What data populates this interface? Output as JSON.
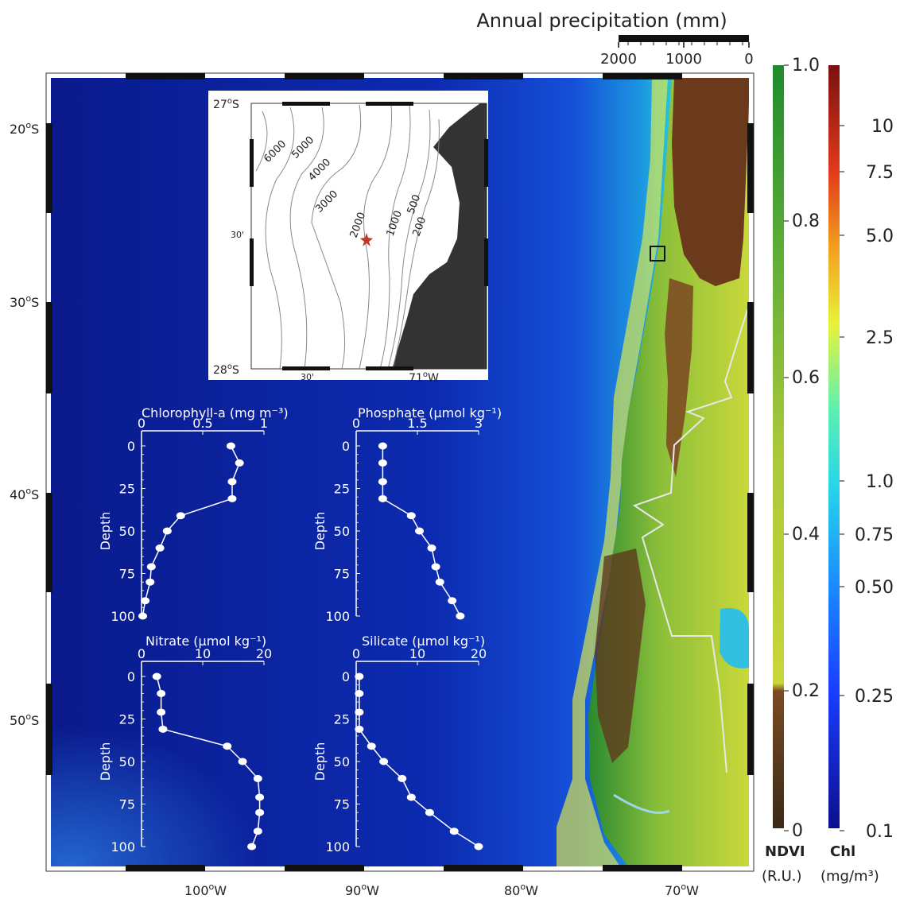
{
  "precip": {
    "title": "Annual precipitation (mm)",
    "ticks": [
      "2000",
      "1000",
      "0"
    ]
  },
  "lat_labels": [
    {
      "deg": "20",
      "suffix": "S"
    },
    {
      "deg": "30",
      "suffix": "S"
    },
    {
      "deg": "40",
      "suffix": "S"
    },
    {
      "deg": "50",
      "suffix": "S"
    }
  ],
  "lon_labels": [
    {
      "deg": "100",
      "suffix": "W"
    },
    {
      "deg": "90",
      "suffix": "W"
    },
    {
      "deg": "80",
      "suffix": "W"
    },
    {
      "deg": "70",
      "suffix": "W"
    }
  ],
  "inset": {
    "lat_top": {
      "deg": "27",
      "suffix": "S"
    },
    "lat_bottom": {
      "deg": "28",
      "suffix": "S"
    },
    "lat_mid": "30'",
    "lon_mid": "30'",
    "lon_right": {
      "deg": "71",
      "suffix": "W"
    },
    "contours": [
      "6000",
      "5000",
      "4000",
      "3000",
      "2000",
      "1000",
      "500",
      "200"
    ]
  },
  "ndvi": {
    "ticks": [
      "1.0",
      "0.8",
      "0.6",
      "0.4",
      "0.2",
      "0"
    ],
    "title": "NDVI",
    "unit": "(R.U.)"
  },
  "chl": {
    "ticks": [
      "10",
      "7.5",
      "5.0",
      "2.5",
      "1.0",
      "0.75",
      "0.50",
      "0.25",
      "0.1"
    ],
    "title": "Chl",
    "unit": "(mg/m³)"
  },
  "colors": {
    "ocean": "#0a1f9e",
    "land": "#a6c23a",
    "desert": "#6b3a1c",
    "ndvi_green": "#2f8f2f",
    "chl_red": "#8b1a10"
  },
  "profiles": {
    "chlorophyll": {
      "title": "Chlorophyll-a (mg m⁻³)",
      "ylabel": "Depth",
      "xticks": [
        "0",
        "0.5",
        "1"
      ],
      "yticks": [
        "0",
        "25",
        "50",
        "75",
        "100"
      ],
      "xlim": [
        0,
        1
      ],
      "ylim": [
        0,
        100
      ],
      "points": [
        [
          0.73,
          0
        ],
        [
          0.8,
          10
        ],
        [
          0.74,
          21
        ],
        [
          0.74,
          31
        ],
        [
          0.32,
          41
        ],
        [
          0.21,
          50
        ],
        [
          0.15,
          60
        ],
        [
          0.08,
          71
        ],
        [
          0.07,
          80
        ],
        [
          0.03,
          91
        ],
        [
          0.01,
          100
        ]
      ]
    },
    "phosphate": {
      "title": "Phosphate (µmol kg⁻¹)",
      "ylabel": "Depth",
      "xticks": [
        "0",
        "1.5",
        "3"
      ],
      "yticks": [
        "0",
        "25",
        "50",
        "75",
        "100"
      ],
      "xlim": [
        0,
        3
      ],
      "ylim": [
        0,
        100
      ],
      "points": [
        [
          0.65,
          0
        ],
        [
          0.65,
          10
        ],
        [
          0.65,
          21
        ],
        [
          0.65,
          31
        ],
        [
          1.35,
          41
        ],
        [
          1.55,
          50
        ],
        [
          1.85,
          60
        ],
        [
          1.95,
          71
        ],
        [
          2.05,
          80
        ],
        [
          2.35,
          91
        ],
        [
          2.55,
          100
        ]
      ]
    },
    "nitrate": {
      "title": "Nitrate (µmol kg⁻¹)",
      "ylabel": "Depth",
      "xticks": [
        "0",
        "10",
        "20"
      ],
      "yticks": [
        "0",
        "25",
        "50",
        "75",
        "100"
      ],
      "xlim": [
        0,
        20
      ],
      "ylim": [
        0,
        100
      ],
      "points": [
        [
          2.5,
          0
        ],
        [
          3.2,
          10
        ],
        [
          3.2,
          21
        ],
        [
          3.5,
          31
        ],
        [
          14,
          41
        ],
        [
          16.5,
          50
        ],
        [
          19,
          60
        ],
        [
          19.3,
          71
        ],
        [
          19.3,
          80
        ],
        [
          19,
          91
        ],
        [
          18,
          100
        ]
      ]
    },
    "silicate": {
      "title": "Silicate (µmol kg⁻¹)",
      "ylabel": "Depth",
      "xticks": [
        "0",
        "10",
        "20"
      ],
      "yticks": [
        "0",
        "25",
        "50",
        "75",
        "100"
      ],
      "xlim": [
        0,
        20
      ],
      "ylim": [
        0,
        100
      ],
      "points": [
        [
          0.5,
          0
        ],
        [
          0.5,
          10
        ],
        [
          0.5,
          21
        ],
        [
          0.5,
          31
        ],
        [
          2.5,
          41
        ],
        [
          4.5,
          50
        ],
        [
          7.5,
          60
        ],
        [
          9,
          71
        ],
        [
          12,
          80
        ],
        [
          16,
          91
        ],
        [
          20,
          100
        ]
      ]
    }
  }
}
